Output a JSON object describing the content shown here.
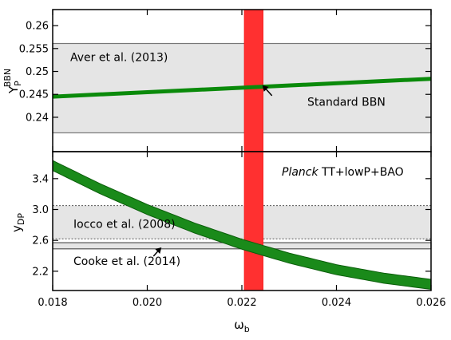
{
  "chart_data": [
    {
      "type": "line",
      "xlabel": "ω",
      "xlabel_sub": "b",
      "ylabel": "Y",
      "ylabel_sup": "BBN",
      "ylabel_sub": "P",
      "xlim": [
        0.018,
        0.026
      ],
      "ylim": [
        0.2325,
        0.2635
      ],
      "yticks": [
        0.24,
        0.245,
        0.25,
        0.255,
        0.26
      ],
      "ytick_labels": [
        "0.24",
        "0.245",
        "0.25",
        "0.255",
        "0.26"
      ],
      "series": [
        {
          "name": "Standard BBN",
          "color": "#008000",
          "x": [
            0.018,
            0.026
          ],
          "y": [
            0.2445,
            0.2484
          ]
        }
      ],
      "bands": [
        {
          "label": "Aver et al. (2013)",
          "y_range": [
            0.2366,
            0.2561
          ],
          "color": "#e5e5e5"
        }
      ],
      "vertical_band": {
        "x_range": [
          0.02205,
          0.02245
        ],
        "color": "#ff0000"
      },
      "annotations": [
        {
          "text": "Standard BBN",
          "arrow_to": [
            0.0224,
            0.2475
          ]
        }
      ],
      "grid": false
    },
    {
      "type": "line",
      "xlabel": "ω",
      "xlabel_sub": "b",
      "ylabel": "y",
      "ylabel_sub": "DP",
      "xlim": [
        0.018,
        0.026
      ],
      "ylim": [
        1.95,
        3.75
      ],
      "xticks": [
        0.018,
        0.02,
        0.022,
        0.024,
        0.026
      ],
      "xtick_labels": [
        "0.018",
        "0.020",
        "0.022",
        "0.024",
        "0.026"
      ],
      "yticks": [
        2.2,
        2.6,
        3.0,
        3.4
      ],
      "ytick_labels": [
        "2.2",
        "2.6",
        "3.0",
        "3.4"
      ],
      "series": [
        {
          "name": "Standard BBN",
          "color": "#008000",
          "x": [
            0.018,
            0.019,
            0.02,
            0.021,
            0.022,
            0.023,
            0.024,
            0.025,
            0.026
          ],
          "y": [
            3.57,
            3.27,
            3.0,
            2.76,
            2.55,
            2.37,
            2.22,
            2.11,
            2.03
          ]
        }
      ],
      "band_half_width": 0.065,
      "bands": [
        {
          "label": "Iocco et al. (2008)",
          "y_range": [
            2.62,
            3.05
          ],
          "color": "#e5e5e5",
          "border": "dotted"
        },
        {
          "label": "Cooke et al. (2014)",
          "y_range": [
            2.49,
            2.57
          ],
          "color": "#e5e5e5",
          "border": "solid"
        }
      ],
      "vertical_band": {
        "x_range": [
          0.02205,
          0.02245
        ],
        "color": "#ff0000",
        "label_italic": "Planck",
        "label_rest": " TT+lowP+BAO"
      },
      "annotations": [
        {
          "text": "Cooke et al. (2014)",
          "arrow_to": [
            0.0203,
            2.55
          ]
        }
      ],
      "grid": false
    }
  ]
}
